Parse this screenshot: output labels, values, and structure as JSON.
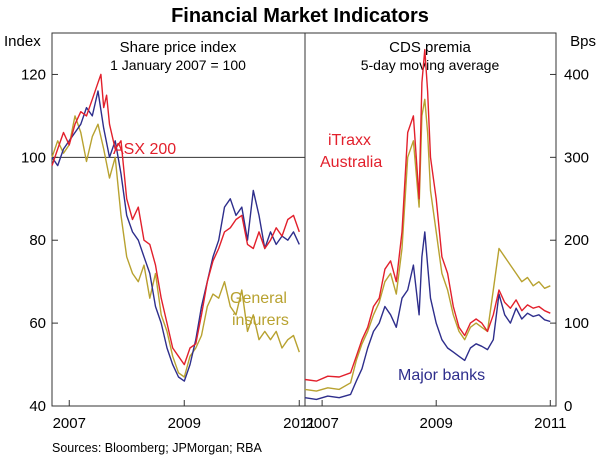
{
  "title": "Financial Market Indicators",
  "source": "Sources: Bloomberg; JPMorgan; RBA",
  "colors": {
    "red": "#e2202c",
    "gold": "#b8a230",
    "navy": "#2e2e8c",
    "grid": "#333333"
  },
  "chart_data": [
    {
      "type": "line",
      "panel_title": "Share price index",
      "panel_subtitle": "1 January 2007 = 100",
      "ylabel": "Index",
      "ylim": [
        40,
        130
      ],
      "yticks": [
        40,
        60,
        80,
        100,
        120
      ],
      "xlim": [
        2006.7,
        2011.1
      ],
      "xticks": [
        "2007",
        "2009",
        "2011"
      ],
      "reference_line": 100,
      "series": [
        {
          "name": "ASX 200",
          "color": "red",
          "x": [
            2006.7,
            2006.8,
            2006.9,
            2007.0,
            2007.1,
            2007.2,
            2007.3,
            2007.4,
            2007.5,
            2007.55,
            2007.6,
            2007.65,
            2007.7,
            2007.8,
            2007.9,
            2008.0,
            2008.1,
            2008.2,
            2008.3,
            2008.4,
            2008.5,
            2008.6,
            2008.7,
            2008.8,
            2008.9,
            2009.0,
            2009.1,
            2009.2,
            2009.3,
            2009.4,
            2009.5,
            2009.6,
            2009.7,
            2009.8,
            2009.9,
            2010.0,
            2010.1,
            2010.2,
            2010.3,
            2010.4,
            2010.5,
            2010.6,
            2010.7,
            2010.8,
            2010.9,
            2011.0
          ],
          "y": [
            98,
            102,
            106,
            103,
            108,
            111,
            110,
            114,
            118,
            120,
            112,
            115,
            108,
            102,
            104,
            90,
            85,
            88,
            80,
            79,
            74,
            66,
            60,
            54,
            52,
            50,
            54,
            55,
            62,
            70,
            75,
            78,
            82,
            83,
            85,
            86,
            79,
            78,
            82,
            78,
            80,
            83,
            81,
            85,
            86,
            82
          ]
        },
        {
          "name": "General insurers",
          "color": "gold",
          "x": [
            2006.7,
            2006.8,
            2006.9,
            2007.0,
            2007.1,
            2007.2,
            2007.3,
            2007.4,
            2007.5,
            2007.6,
            2007.7,
            2007.8,
            2007.9,
            2008.0,
            2008.1,
            2008.2,
            2008.3,
            2008.4,
            2008.5,
            2008.6,
            2008.7,
            2008.8,
            2008.9,
            2009.0,
            2009.1,
            2009.2,
            2009.3,
            2009.4,
            2009.5,
            2009.6,
            2009.7,
            2009.8,
            2009.9,
            2010.0,
            2010.1,
            2010.2,
            2010.3,
            2010.4,
            2010.5,
            2010.6,
            2010.7,
            2010.8,
            2010.9,
            2011.0
          ],
          "y": [
            100,
            104,
            101,
            103,
            110,
            106,
            99,
            105,
            108,
            102,
            95,
            100,
            86,
            76,
            72,
            70,
            74,
            66,
            72,
            62,
            58,
            52,
            48,
            47,
            52,
            54,
            57,
            64,
            67,
            66,
            70,
            64,
            62,
            68,
            58,
            62,
            56,
            58,
            56,
            58,
            54,
            56,
            57,
            53
          ]
        },
        {
          "name": "",
          "color": "navy",
          "x": [
            2006.7,
            2006.8,
            2006.9,
            2007.0,
            2007.1,
            2007.2,
            2007.3,
            2007.4,
            2007.5,
            2007.6,
            2007.7,
            2007.8,
            2007.9,
            2008.0,
            2008.1,
            2008.2,
            2008.3,
            2008.4,
            2008.5,
            2008.6,
            2008.7,
            2008.8,
            2008.9,
            2009.0,
            2009.1,
            2009.2,
            2009.3,
            2009.4,
            2009.5,
            2009.6,
            2009.7,
            2009.8,
            2009.9,
            2010.0,
            2010.1,
            2010.2,
            2010.3,
            2010.4,
            2010.5,
            2010.6,
            2010.7,
            2010.8,
            2010.9,
            2011.0
          ],
          "y": [
            100,
            98,
            102,
            104,
            106,
            108,
            112,
            110,
            116,
            107,
            100,
            104,
            96,
            86,
            82,
            80,
            76,
            72,
            64,
            60,
            54,
            50,
            47,
            46,
            50,
            56,
            64,
            70,
            76,
            80,
            88,
            90,
            86,
            88,
            80,
            92,
            86,
            78,
            82,
            79,
            81,
            80,
            82,
            79
          ]
        }
      ],
      "series_labels": [
        "ASX 200",
        "General",
        "insurers"
      ]
    },
    {
      "type": "line",
      "panel_title": "CDS premia",
      "panel_subtitle": "5-day moving average",
      "ylabel": "Bps",
      "ylim": [
        0,
        450
      ],
      "yticks": [
        0,
        100,
        200,
        300,
        400
      ],
      "xlim": [
        2006.7,
        2011.1
      ],
      "xticks": [
        "2007",
        "2009",
        "2011"
      ],
      "series": [
        {
          "name": "iTraxx Australia",
          "color": "red",
          "x": [
            2006.7,
            2006.9,
            2007.1,
            2007.3,
            2007.5,
            2007.6,
            2007.7,
            2007.8,
            2007.9,
            2008.0,
            2008.1,
            2008.2,
            2008.3,
            2008.4,
            2008.5,
            2008.6,
            2008.7,
            2008.75,
            2008.8,
            2008.85,
            2008.9,
            2009.0,
            2009.1,
            2009.2,
            2009.3,
            2009.4,
            2009.5,
            2009.6,
            2009.7,
            2009.8,
            2009.9,
            2010.0,
            2010.1,
            2010.2,
            2010.3,
            2010.4,
            2010.5,
            2010.6,
            2010.7,
            2010.8,
            2010.9,
            2011.0
          ],
          "y": [
            32,
            30,
            36,
            35,
            40,
            60,
            80,
            95,
            120,
            130,
            165,
            175,
            150,
            210,
            330,
            350,
            250,
            390,
            430,
            380,
            300,
            250,
            180,
            160,
            120,
            95,
            85,
            100,
            105,
            100,
            90,
            110,
            140,
            125,
            118,
            128,
            115,
            122,
            118,
            120,
            115,
            112
          ]
        },
        {
          "name": "",
          "color": "gold",
          "x": [
            2006.7,
            2006.9,
            2007.1,
            2007.3,
            2007.5,
            2007.6,
            2007.7,
            2007.8,
            2007.9,
            2008.0,
            2008.1,
            2008.2,
            2008.3,
            2008.4,
            2008.5,
            2008.6,
            2008.7,
            2008.75,
            2008.8,
            2008.85,
            2008.9,
            2009.0,
            2009.1,
            2009.2,
            2009.3,
            2009.4,
            2009.5,
            2009.6,
            2009.7,
            2009.8,
            2009.9,
            2010.0,
            2010.1,
            2010.2,
            2010.3,
            2010.4,
            2010.5,
            2010.6,
            2010.7,
            2010.8,
            2010.9,
            2011.0
          ],
          "y": [
            20,
            18,
            22,
            20,
            28,
            55,
            75,
            90,
            110,
            125,
            150,
            160,
            135,
            190,
            300,
            320,
            240,
            350,
            370,
            330,
            260,
            210,
            160,
            140,
            110,
            90,
            80,
            95,
            100,
            95,
            90,
            140,
            190,
            180,
            170,
            160,
            150,
            155,
            145,
            150,
            142,
            145
          ]
        },
        {
          "name": "Major banks",
          "color": "navy",
          "x": [
            2006.7,
            2006.9,
            2007.1,
            2007.3,
            2007.5,
            2007.6,
            2007.7,
            2007.8,
            2007.9,
            2008.0,
            2008.1,
            2008.2,
            2008.3,
            2008.4,
            2008.5,
            2008.6,
            2008.7,
            2008.75,
            2008.8,
            2008.85,
            2008.9,
            2009.0,
            2009.1,
            2009.2,
            2009.3,
            2009.4,
            2009.5,
            2009.6,
            2009.7,
            2009.8,
            2009.9,
            2010.0,
            2010.1,
            2010.2,
            2010.3,
            2010.4,
            2010.5,
            2010.6,
            2010.7,
            2010.8,
            2010.9,
            2011.0
          ],
          "y": [
            10,
            8,
            12,
            10,
            14,
            30,
            45,
            70,
            90,
            100,
            120,
            110,
            95,
            130,
            140,
            170,
            110,
            180,
            210,
            170,
            130,
            100,
            80,
            70,
            65,
            60,
            55,
            70,
            75,
            72,
            68,
            80,
            135,
            110,
            100,
            118,
            105,
            112,
            108,
            110,
            104,
            102
          ]
        }
      ],
      "series_labels": [
        "iTraxx",
        "Australia",
        "Major banks"
      ]
    }
  ]
}
